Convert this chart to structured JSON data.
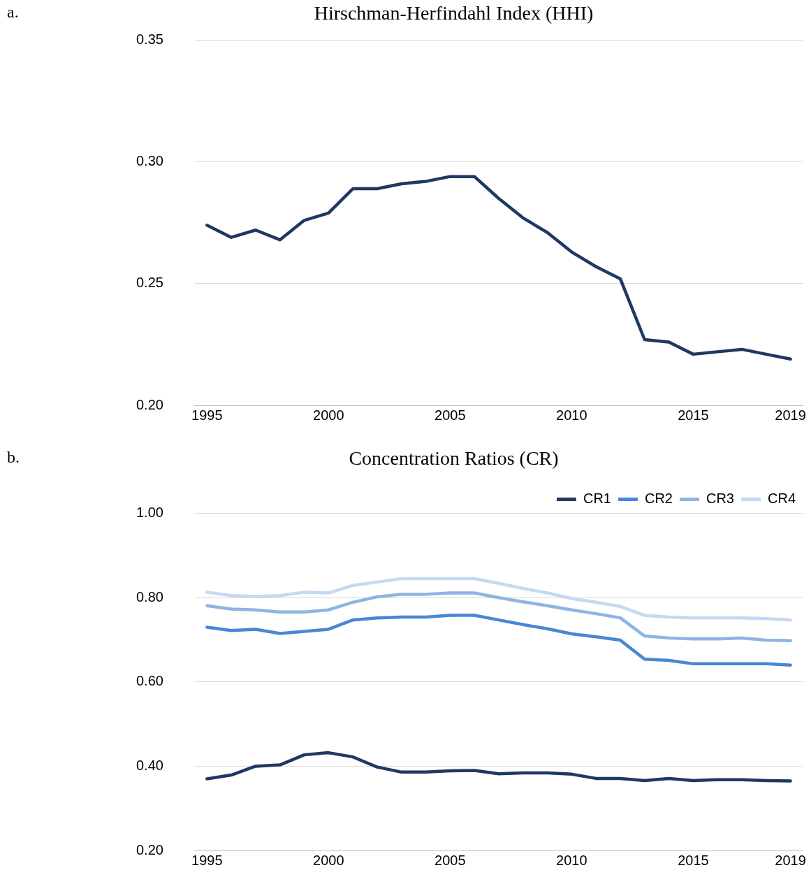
{
  "chart_data": [
    {
      "type": "line",
      "title": "Hirschman-Herfindahl Index (HHI)",
      "annotations": [
        "a."
      ],
      "x": [
        1995,
        1996,
        1997,
        1998,
        1999,
        2000,
        2001,
        2002,
        2003,
        2004,
        2005,
        2006,
        2007,
        2008,
        2009,
        2010,
        2011,
        2012,
        2013,
        2014,
        2015,
        2016,
        2017,
        2018,
        2019
      ],
      "series": [
        {
          "color": "#1f3864",
          "values": [
            0.274,
            0.269,
            0.272,
            0.268,
            0.276,
            0.279,
            0.289,
            0.289,
            0.291,
            0.292,
            0.294,
            0.294,
            0.285,
            0.277,
            0.271,
            0.263,
            0.257,
            0.252,
            0.227,
            0.226,
            0.221,
            0.222,
            0.223,
            0.221,
            0.219
          ]
        }
      ],
      "xlim": [
        1994.5,
        2019.5
      ],
      "xticks": [
        1995,
        2000,
        2005,
        2010,
        2015,
        2019
      ],
      "ylim": [
        0.2,
        0.35
      ],
      "yticks": [
        {
          "value": 0.2,
          "label": "0.20"
        },
        {
          "value": 0.25,
          "label": "0.25"
        },
        {
          "value": 0.3,
          "label": "0.30"
        },
        {
          "value": 0.35,
          "label": "0.35"
        }
      ],
      "grid": "y",
      "legend": false,
      "marker": "none",
      "line_style": "solid"
    },
    {
      "type": "line",
      "title": "Concentration Ratios (CR)",
      "annotations": [
        "b."
      ],
      "x": [
        1995,
        1996,
        1997,
        1998,
        1999,
        2000,
        2001,
        2002,
        2003,
        2004,
        2005,
        2006,
        2007,
        2008,
        2009,
        2010,
        2011,
        2012,
        2013,
        2014,
        2015,
        2016,
        2017,
        2018,
        2019
      ],
      "series": [
        {
          "name": "CR1",
          "color": "#1f3864",
          "values": [
            0.37,
            0.379,
            0.4,
            0.403,
            0.427,
            0.432,
            0.422,
            0.398,
            0.386,
            0.386,
            0.389,
            0.39,
            0.382,
            0.384,
            0.384,
            0.381,
            0.371,
            0.371,
            0.366,
            0.371,
            0.366,
            0.368,
            0.368,
            0.366,
            0.365
          ]
        },
        {
          "name": "CR2",
          "color": "#4a86d4",
          "values": [
            0.73,
            0.722,
            0.725,
            0.715,
            0.72,
            0.725,
            0.747,
            0.752,
            0.754,
            0.754,
            0.758,
            0.758,
            0.747,
            0.736,
            0.726,
            0.714,
            0.707,
            0.699,
            0.654,
            0.651,
            0.643,
            0.643,
            0.643,
            0.643,
            0.64
          ]
        },
        {
          "name": "CR3",
          "color": "#8eb4e3",
          "values": [
            0.781,
            0.773,
            0.771,
            0.766,
            0.766,
            0.771,
            0.789,
            0.802,
            0.808,
            0.808,
            0.811,
            0.811,
            0.8,
            0.79,
            0.781,
            0.771,
            0.762,
            0.752,
            0.709,
            0.704,
            0.702,
            0.702,
            0.704,
            0.699,
            0.698
          ]
        },
        {
          "name": "CR4",
          "color": "#c5d9f1",
          "values": [
            0.813,
            0.805,
            0.803,
            0.805,
            0.813,
            0.811,
            0.829,
            0.837,
            0.845,
            0.845,
            0.845,
            0.845,
            0.834,
            0.822,
            0.811,
            0.798,
            0.789,
            0.779,
            0.758,
            0.754,
            0.752,
            0.752,
            0.752,
            0.75,
            0.747
          ]
        }
      ],
      "xlim": [
        1994.5,
        2019.5
      ],
      "xticks": [
        1995,
        2000,
        2005,
        2010,
        2015,
        2019
      ],
      "ylim": [
        0.2,
        1.0
      ],
      "yticks": [
        {
          "value": 0.2,
          "label": "0.20"
        },
        {
          "value": 0.4,
          "label": "0.40"
        },
        {
          "value": 0.6,
          "label": "0.60"
        },
        {
          "value": 0.8,
          "label": "0.80"
        },
        {
          "value": 1.0,
          "label": "1.00"
        }
      ],
      "grid": "y",
      "legend": "top right",
      "marker": "none",
      "line_style": "solid"
    }
  ]
}
